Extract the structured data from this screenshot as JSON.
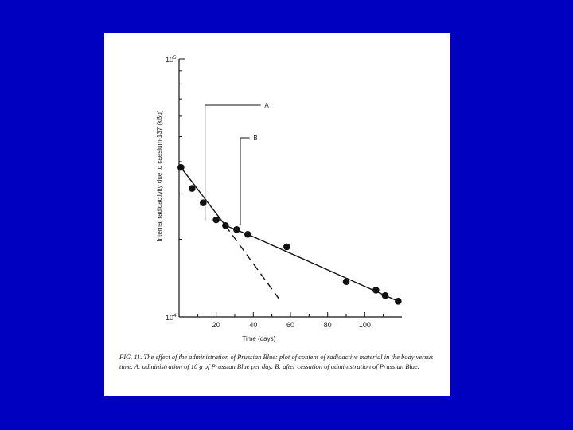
{
  "colors": {
    "background": "#0000c0",
    "panel": "#ffffff",
    "ink": "#111111"
  },
  "chart_data": {
    "type": "scatter",
    "y_scale": "log",
    "xlim": [
      0,
      120
    ],
    "ylim": [
      10000,
      100000
    ],
    "x_tick_labels": [
      "20",
      "40",
      "60",
      "80",
      "100"
    ],
    "x_tick_values": [
      20,
      40,
      60,
      80,
      100
    ],
    "y_tick_labels": [
      {
        "base": "10",
        "exp": "5",
        "value": 100000
      },
      {
        "base": "10",
        "exp": "4",
        "value": 10000
      }
    ],
    "xlabel": "Time  (days)",
    "ylabel": "Internal radioactivity due to caesium-137  (kBq)",
    "series": [
      {
        "points": [
          {
            "x": 1,
            "y": 38000
          },
          {
            "x": 7,
            "y": 31500
          },
          {
            "x": 13,
            "y": 27700
          },
          {
            "x": 20,
            "y": 23800
          },
          {
            "x": 25,
            "y": 22600
          },
          {
            "x": 31,
            "y": 21800
          },
          {
            "x": 37,
            "y": 20900
          },
          {
            "x": 58,
            "y": 18700
          },
          {
            "x": 90,
            "y": 13700
          },
          {
            "x": 106,
            "y": 12700
          },
          {
            "x": 111,
            "y": 12100
          },
          {
            "x": 118,
            "y": 11500
          }
        ]
      }
    ],
    "fit_lines": [
      {
        "style": "solid",
        "points": [
          [
            1,
            38000
          ],
          [
            25,
            22600
          ]
        ]
      },
      {
        "style": "solid",
        "points": [
          [
            25,
            22600
          ],
          [
            37,
            20900
          ],
          [
            118,
            11500
          ]
        ]
      },
      {
        "style": "dashed",
        "points": [
          [
            25,
            22600
          ],
          [
            54,
            11700
          ]
        ]
      }
    ],
    "annotations": [
      {
        "label": "A",
        "x": 14
      },
      {
        "label": "B",
        "x": 33
      }
    ],
    "grid": false
  },
  "caption": {
    "fig_label": "FIG. 11.",
    "text": "The effect of the administration of Prussian Blue: plot of content of radioactive material in the body versus time. A: administration of 10 g of Prussian Blue per day. B: after cessation of administration of Prussian Blue."
  }
}
